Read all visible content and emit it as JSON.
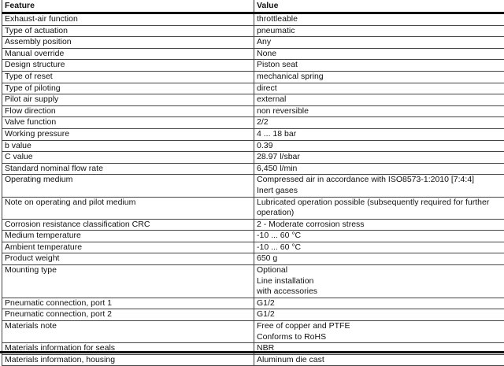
{
  "header": {
    "feature": "Feature",
    "value": "Value"
  },
  "rows": [
    {
      "feature": "Exhaust-air function",
      "value": [
        "throttleable"
      ]
    },
    {
      "feature": "Type of actuation",
      "value": [
        "pneumatic"
      ]
    },
    {
      "feature": "Assembly position",
      "value": [
        "Any"
      ]
    },
    {
      "feature": "Manual override",
      "value": [
        "None"
      ]
    },
    {
      "feature": "Design structure",
      "value": [
        "Piston seat"
      ]
    },
    {
      "feature": "Type of reset",
      "value": [
        "mechanical spring"
      ]
    },
    {
      "feature": "Type of piloting",
      "value": [
        "direct"
      ]
    },
    {
      "feature": "Pilot air supply",
      "value": [
        "external"
      ]
    },
    {
      "feature": "Flow direction",
      "value": [
        "non reversible"
      ]
    },
    {
      "feature": "Valve function",
      "value": [
        "2/2"
      ]
    },
    {
      "feature": "Working pressure",
      "value": [
        "4 ... 18 bar"
      ]
    },
    {
      "feature": "b value",
      "value": [
        "0.39"
      ]
    },
    {
      "feature": "C value",
      "value": [
        "28.97 l/sbar"
      ]
    },
    {
      "feature": "Standard nominal flow rate",
      "value": [
        "6,450 l/min"
      ]
    },
    {
      "feature": "Operating medium",
      "value": [
        "Compressed air in accordance with ISO8573-1:2010 [7:4:4]",
        "Inert gases"
      ]
    },
    {
      "feature": "Note on operating and pilot medium",
      "value": [
        "Lubricated operation possible (subsequently required for further",
        "operation)"
      ]
    },
    {
      "feature": "Corrosion resistance classification CRC",
      "value": [
        "2 - Moderate corrosion stress"
      ]
    },
    {
      "feature": "Medium temperature",
      "value": [
        "-10 ... 60 °C"
      ]
    },
    {
      "feature": "Ambient temperature",
      "value": [
        "-10 ... 60 °C"
      ]
    },
    {
      "feature": "Product weight",
      "value": [
        "650 g"
      ]
    },
    {
      "feature": "Mounting type",
      "value": [
        "Optional",
        "Line installation",
        "with accessories"
      ]
    },
    {
      "feature": "Pneumatic connection, port  1",
      "value": [
        "G1/2"
      ]
    },
    {
      "feature": "Pneumatic connection, port  2",
      "value": [
        "G1/2"
      ]
    },
    {
      "feature": "Materials note",
      "value": [
        "Free of copper and PTFE",
        "Conforms to RoHS"
      ]
    },
    {
      "feature": "Materials information for seals",
      "value": [
        "NBR"
      ]
    },
    {
      "feature": "Materials information, housing",
      "value": [
        "Aluminum die cast"
      ]
    }
  ]
}
